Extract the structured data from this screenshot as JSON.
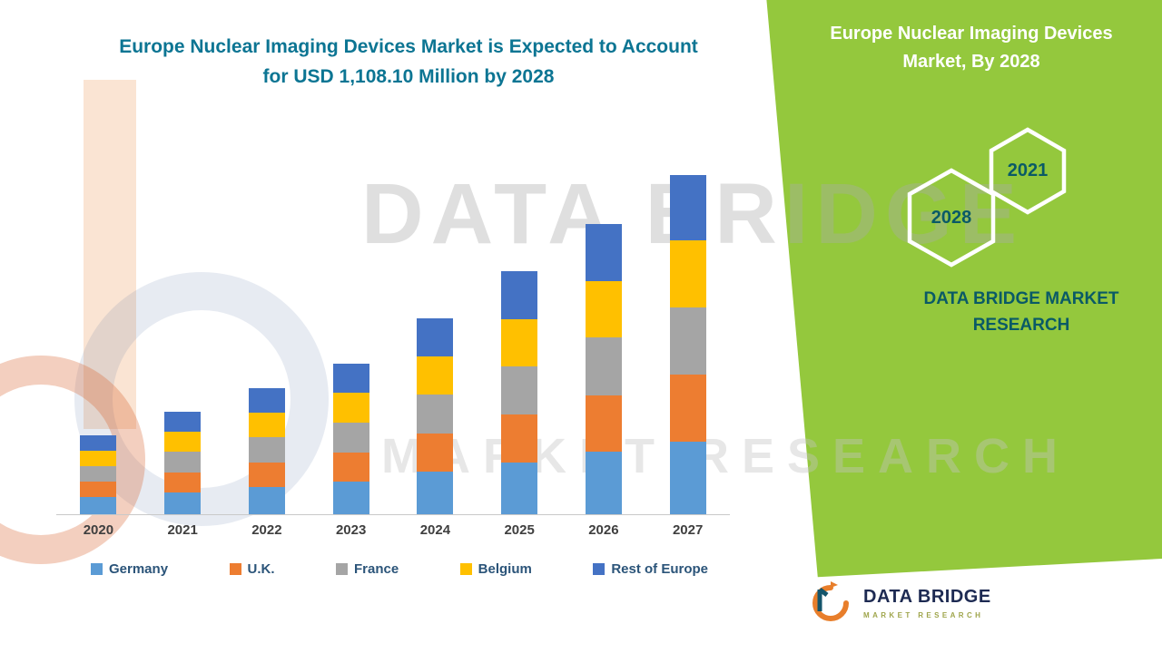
{
  "header": {
    "title_line1": "Europe Nuclear Imaging Devices Market is Expected to Account",
    "title_line2": "for USD 1,108.10 Million by 2028",
    "title_color": "#0C7593"
  },
  "side_panel": {
    "background_color": "#94C83D",
    "title_line1": "Europe Nuclear Imaging Devices",
    "title_line2": "Market, By 2028",
    "hexagons": [
      {
        "label": "2028"
      },
      {
        "label": "2021"
      }
    ],
    "brand_line1": "DATA BRIDGE MARKET",
    "brand_line2": "RESEARCH",
    "text_color": "#0A5A66"
  },
  "watermark": {
    "line1": "DATA BRIDGE",
    "line2": "MARKET RESEARCH"
  },
  "footer_logo": {
    "name": "DATA BRIDGE",
    "subtitle": "MARKET RESEARCH"
  },
  "chart_data": {
    "type": "bar",
    "stacked": true,
    "title": "Europe Nuclear Imaging Devices Market is Expected to Account for USD 1,108.10 Million by 2028",
    "unit": "USD Million",
    "categories": [
      "2020",
      "2021",
      "2022",
      "2023",
      "2024",
      "2025",
      "2026",
      "2027"
    ],
    "series": [
      {
        "name": "Germany",
        "color": "#5B9BD5",
        "values": [
          50,
          65,
          80,
          96,
          125,
          154,
          184,
          216
        ]
      },
      {
        "name": "U.K.",
        "color": "#ED7D31",
        "values": [
          46,
          59,
          73,
          87,
          113,
          140,
          167,
          196
        ]
      },
      {
        "name": "France",
        "color": "#A5A5A5",
        "values": [
          47,
          60,
          75,
          89,
          116,
          144,
          172,
          201
        ]
      },
      {
        "name": "Belgium",
        "color": "#FFC000",
        "values": [
          46,
          59,
          73,
          87,
          113,
          140,
          167,
          196
        ]
      },
      {
        "name": "Rest of Europe",
        "color": "#4472C4",
        "values": [
          45,
          59,
          73,
          86,
          113,
          140,
          168,
          195
        ]
      }
    ],
    "totals": [
      234,
      302,
      374,
      445,
      580,
      718,
      858,
      1004
    ],
    "ylim": [
      0,
      1100
    ],
    "grid": false,
    "y_axis_visible": false,
    "legend_position": "bottom"
  }
}
